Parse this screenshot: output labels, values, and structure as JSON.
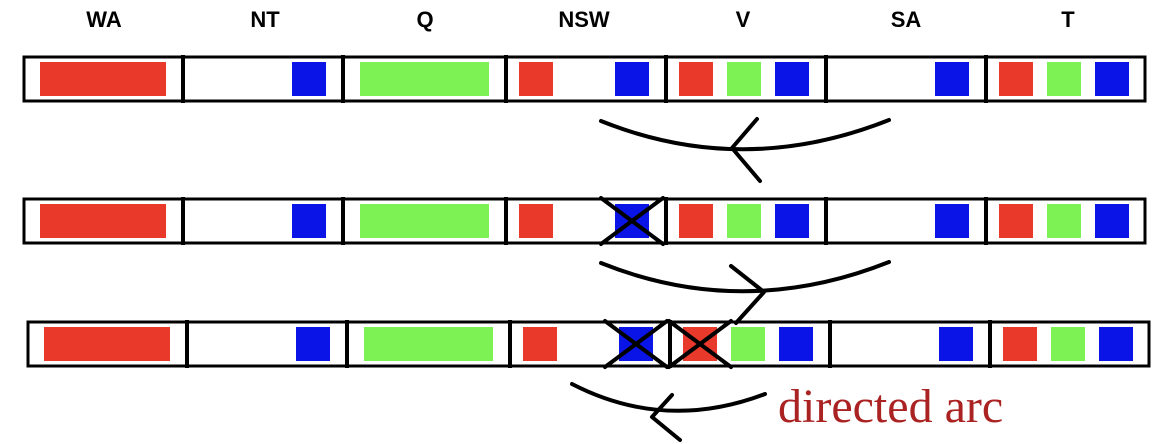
{
  "domain_colors": {
    "red": "#E8392A",
    "green": "#7CF255",
    "blue": "#0A14E6"
  },
  "caption": {
    "text": "directed arc",
    "color": "#AA2222"
  },
  "variables": [
    "WA",
    "NT",
    "Q",
    "NSW",
    "V",
    "SA",
    "T"
  ],
  "rows": [
    {
      "domains": [
        [
          {
            "color": "red",
            "wide": true
          }
        ],
        [
          {
            "color": "blue"
          }
        ],
        [
          {
            "color": "green",
            "wide": true
          }
        ],
        [
          {
            "color": "red"
          },
          {
            "color": "blue"
          }
        ],
        [
          {
            "color": "red"
          },
          {
            "color": "green"
          },
          {
            "color": "blue"
          }
        ],
        [
          {
            "color": "blue"
          }
        ],
        [
          {
            "color": "red"
          },
          {
            "color": "green"
          },
          {
            "color": "blue"
          }
        ]
      ]
    },
    {
      "domains": [
        [
          {
            "color": "red",
            "wide": true
          }
        ],
        [
          {
            "color": "blue"
          }
        ],
        [
          {
            "color": "green",
            "wide": true
          }
        ],
        [
          {
            "color": "red"
          },
          {
            "color": "blue",
            "crossed": true
          }
        ],
        [
          {
            "color": "red"
          },
          {
            "color": "green"
          },
          {
            "color": "blue"
          }
        ],
        [
          {
            "color": "blue"
          }
        ],
        [
          {
            "color": "red"
          },
          {
            "color": "green"
          },
          {
            "color": "blue"
          }
        ]
      ]
    },
    {
      "domains": [
        [
          {
            "color": "red",
            "wide": true
          }
        ],
        [
          {
            "color": "blue"
          }
        ],
        [
          {
            "color": "green",
            "wide": true
          }
        ],
        [
          {
            "color": "red"
          },
          {
            "color": "blue",
            "crossed": true
          }
        ],
        [
          {
            "color": "red",
            "crossed": true
          },
          {
            "color": "green"
          },
          {
            "color": "blue"
          }
        ],
        [
          {
            "color": "blue"
          }
        ],
        [
          {
            "color": "red"
          },
          {
            "color": "green"
          },
          {
            "color": "blue"
          }
        ]
      ]
    }
  ],
  "arcs": [
    {
      "from": "SA",
      "to": "NSW",
      "arrow_head": "left"
    },
    {
      "from": "NSW",
      "to": "SA",
      "arrow_head": "right"
    },
    {
      "from": "V",
      "to": "NSW",
      "arrow_head": "left"
    }
  ]
}
